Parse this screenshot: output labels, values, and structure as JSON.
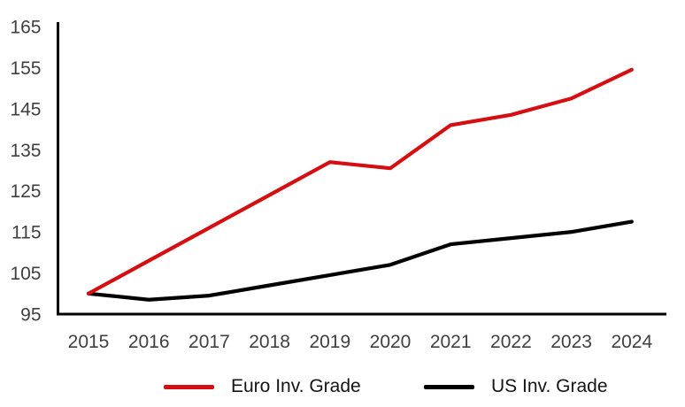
{
  "chart_data": {
    "type": "line",
    "title": "",
    "xlabel": "",
    "ylabel": "",
    "x_categories": [
      "2015",
      "2016",
      "2017",
      "2018",
      "2019",
      "2020",
      "2021",
      "2022",
      "2023",
      "2024"
    ],
    "series": [
      {
        "name": "Euro Inv. Grade",
        "color": "#d40e11",
        "values": [
          100,
          108,
          116,
          124,
          132,
          130.5,
          141,
          143.5,
          147.5,
          154.5
        ]
      },
      {
        "name": "US Inv. Grade",
        "color": "#000000",
        "values": [
          100,
          98.5,
          99.5,
          102,
          104.5,
          107,
          112,
          113.5,
          115,
          117.5
        ]
      }
    ],
    "y_ticks": [
      95,
      105,
      115,
      125,
      135,
      145,
      155,
      165
    ],
    "ylim": [
      95,
      165
    ],
    "grid": false,
    "legend_position": "bottom",
    "axis_color": "#000000",
    "tick_label_color": "#3f3f3f"
  }
}
